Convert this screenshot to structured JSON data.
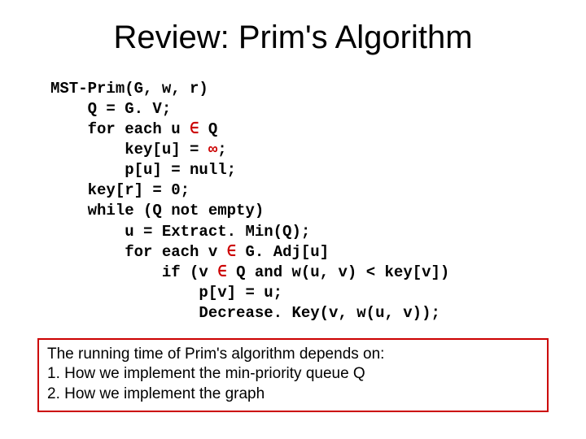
{
  "title": "Review: Prim's Algorithm",
  "code": {
    "l1": "MST-Prim(G, w, r)",
    "l2": "    Q = G. V;",
    "l3a": "    for each u ",
    "l3sym": "∈",
    "l3b": " Q",
    "l4a": "        key[u] = ",
    "l4sym": "∞",
    "l4b": ";",
    "l5": "        p[u] = null;",
    "l6": "    key[r] = 0;",
    "l7": "    while (Q not empty)",
    "l8": "        u = Extract. Min(Q);",
    "l9a": "        for each v ",
    "l9sym": "∈",
    "l9b": " G. Adj[u]",
    "l10a": "            if (v ",
    "l10sym": "∈",
    "l10b": " Q and w(u, v) < key[v])",
    "l11": "                p[v] = u;",
    "l12": "                Decrease. Key(v, w(u, v));"
  },
  "note": {
    "line1": "The running time of Prim's algorithm depends on:",
    "line2": "1.  How we implement the  min-priority queue Q",
    "line3": "2.  How we implement the graph"
  },
  "colors": {
    "accent": "#cc0000",
    "text": "#000000",
    "background": "#ffffff"
  }
}
